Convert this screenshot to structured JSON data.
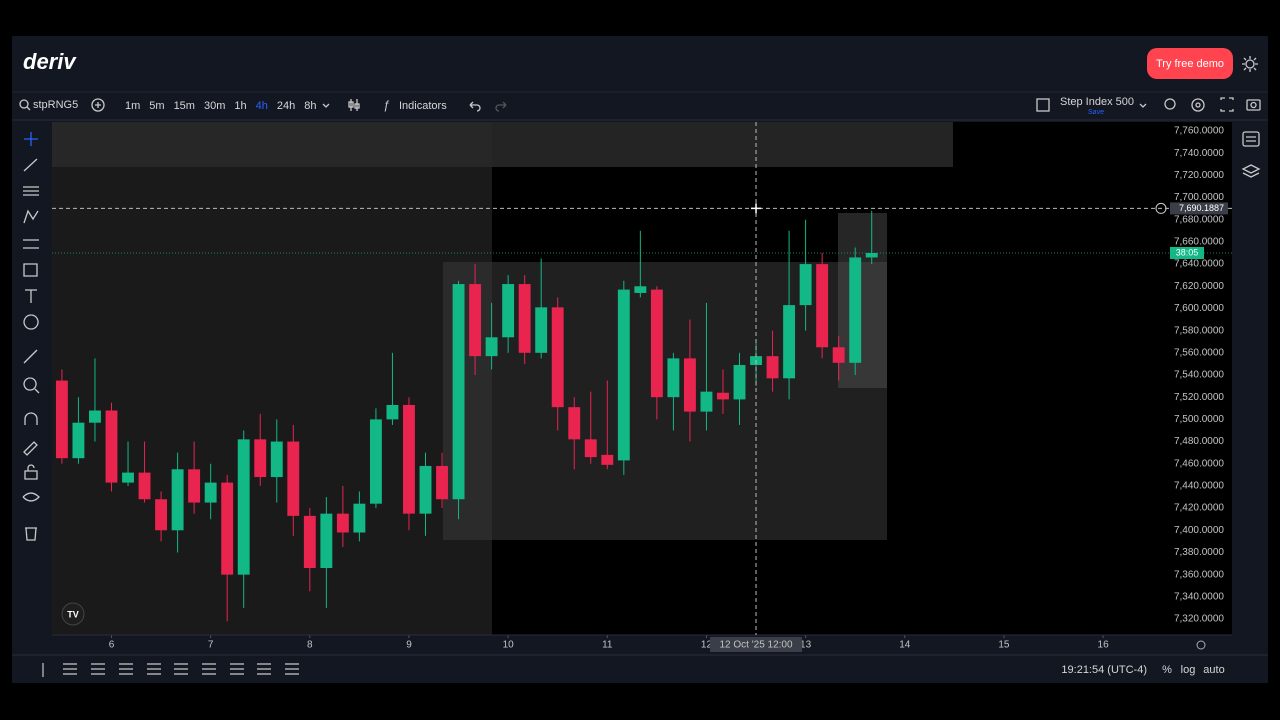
{
  "header": {
    "logo": "deriv",
    "demo_button": "Try free demo"
  },
  "toolbar": {
    "symbol": "stpRNG5",
    "timeframes": [
      "1m",
      "5m",
      "15m",
      "30m",
      "1h",
      "4h",
      "24h",
      "8h"
    ],
    "active_timeframe_index": 5,
    "indicators": "Indicators",
    "market": "Step Index 500",
    "market_sub": "Save"
  },
  "chart_data": {
    "type": "candlestick",
    "x": [
      5.5,
      5.6667,
      5.8333,
      6,
      6.1667,
      6.3333,
      6.5,
      6.6667,
      6.8333,
      7,
      7.1667,
      7.3333,
      7.5,
      7.6667,
      7.8333,
      8,
      8.1667,
      8.3333,
      8.5,
      8.6667,
      8.8333,
      9,
      9.1667,
      9.3333,
      9.5,
      9.6667,
      9.8333,
      10,
      10.1667,
      10.3333,
      10.5,
      10.6667,
      10.8333,
      11,
      11.1667,
      11.3333,
      11.5,
      11.6667,
      11.8333,
      12,
      12.1667,
      12.3333,
      12.5,
      12.6667,
      12.8333,
      13,
      13.1667,
      13.3333,
      13.5,
      13.6667
    ],
    "open": [
      7535,
      7465,
      7497,
      7508,
      7443,
      7452,
      7428,
      7400,
      7455,
      7425,
      7443,
      7360,
      7482,
      7448,
      7480,
      7413,
      7366,
      7415,
      7398,
      7424,
      7500,
      7513,
      7415,
      7458,
      7428,
      7622,
      7557,
      7574,
      7622,
      7560,
      7601,
      7511,
      7482,
      7468,
      7463,
      7614,
      7617,
      7520,
      7555,
      7507,
      7524,
      7518,
      7549,
      7557,
      7537,
      7603,
      7640,
      7565,
      7551,
      7646
    ],
    "high": [
      7545,
      7520,
      7555,
      7515,
      7480,
      7480,
      7435,
      7470,
      7480,
      7460,
      7450,
      7490,
      7505,
      7500,
      7495,
      7420,
      7430,
      7440,
      7435,
      7510,
      7560,
      7520,
      7470,
      7470,
      7625,
      7640,
      7605,
      7630,
      7630,
      7645,
      7610,
      7520,
      7525,
      7535,
      7625,
      7670,
      7620,
      7560,
      7590,
      7605,
      7545,
      7560,
      7570,
      7580,
      7670,
      7680,
      7650,
      7575,
      7655,
      7688
    ],
    "low": [
      7460,
      7460,
      7480,
      7435,
      7440,
      7425,
      7390,
      7380,
      7415,
      7410,
      7318,
      7330,
      7440,
      7425,
      7395,
      7345,
      7330,
      7385,
      7390,
      7420,
      7495,
      7400,
      7395,
      7420,
      7410,
      7540,
      7545,
      7560,
      7550,
      7555,
      7490,
      7455,
      7460,
      7455,
      7450,
      7610,
      7500,
      7490,
      7480,
      7490,
      7505,
      7495,
      7530,
      7525,
      7518,
      7580,
      7555,
      7535,
      7540,
      7640
    ],
    "close": [
      7465,
      7497,
      7508,
      7443,
      7452,
      7428,
      7400,
      7455,
      7425,
      7443,
      7360,
      7482,
      7448,
      7480,
      7413,
      7366,
      7415,
      7398,
      7424,
      7500,
      7513,
      7415,
      7458,
      7428,
      7622,
      7557,
      7574,
      7622,
      7560,
      7601,
      7511,
      7482,
      7466,
      7459,
      7617,
      7620,
      7520,
      7555,
      7507,
      7525,
      7518,
      7549,
      7557,
      7537,
      7603,
      7640,
      7565,
      7551,
      7646,
      7650
    ],
    "up_color": "#12b886",
    "down_color": "#e8244f",
    "xlim": [
      5.4,
      17.3
    ],
    "ylim": [
      7305.6,
      7768.1
    ],
    "xticks": [
      6,
      7,
      8,
      9,
      10,
      11,
      12,
      13,
      14,
      15,
      16
    ],
    "yticks": [
      {
        "value": 7320,
        "label": "7,320.0000"
      },
      {
        "value": 7340,
        "label": "7,340.0000"
      },
      {
        "value": 7360,
        "label": "7,360.0000"
      },
      {
        "value": 7380,
        "label": "7,380.0000"
      },
      {
        "value": 7400,
        "label": "7,400.0000"
      },
      {
        "value": 7420,
        "label": "7,420.0000"
      },
      {
        "value": 7440,
        "label": "7,440.0000"
      },
      {
        "value": 7460,
        "label": "7,460.0000"
      },
      {
        "value": 7480,
        "label": "7,480.0000"
      },
      {
        "value": 7500,
        "label": "7,500.0000"
      },
      {
        "value": 7520,
        "label": "7,520.0000"
      },
      {
        "value": 7540,
        "label": "7,540.0000"
      },
      {
        "value": 7560,
        "label": "7,560.0000"
      },
      {
        "value": 7580,
        "label": "7,580.0000"
      },
      {
        "value": 7600,
        "label": "7,600.0000"
      },
      {
        "value": 7620,
        "label": "7,620.0000"
      },
      {
        "value": 7640,
        "label": "7,640.0000"
      },
      {
        "value": 7660,
        "label": "7,660.0000"
      },
      {
        "value": 7680,
        "label": "7,680.0000"
      },
      {
        "value": 7700,
        "label": "7,700.0000"
      },
      {
        "value": 7720,
        "label": "7,720.0000"
      },
      {
        "value": 7740,
        "label": "7,740.0000"
      },
      {
        "value": 7760,
        "label": "7,760.0000"
      }
    ],
    "crosshair_price": {
      "value": 7690.1887,
      "label": "7,690.1887"
    },
    "crosshair_time": {
      "value": 12.5,
      "label": "12 Oct '25 12:00"
    },
    "countdown": "38:05"
  },
  "footer": {
    "time": "19:21:54 (UTC-4)",
    "percent": "%",
    "log": "log",
    "auto": "auto"
  }
}
